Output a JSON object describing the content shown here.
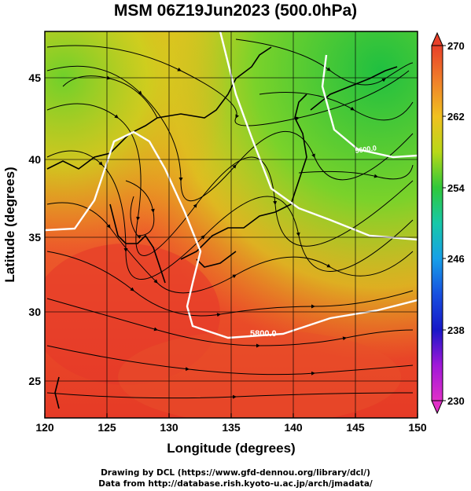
{
  "title": "MSM 06Z19Jun2023 (500.0hPa)",
  "x_axis": {
    "label": "Longitude (degrees)",
    "ticks": [
      "120",
      "125",
      "130",
      "135",
      "140",
      "145",
      "150"
    ]
  },
  "y_axis": {
    "label": "Latitude  (degrees)",
    "ticks": [
      "25",
      "30",
      "35",
      "40",
      "45"
    ]
  },
  "colorbar": {
    "labels": [
      "270",
      "262",
      "254",
      "246",
      "238",
      "230"
    ]
  },
  "contour_labels": [
    "5600.0",
    "5800.0"
  ],
  "footer": {
    "line1": "Drawing by DCL (https://www.gfd-dennou.org/library/dcl/)",
    "line2": "Data from http://database.rish.kyoto-u.ac.jp/arch/jmadata/"
  },
  "colors": {
    "warm": "#e8402a",
    "orange": "#f08a24",
    "yellow": "#e6d21a",
    "green": "#3cc82e",
    "contour": "#ffffff"
  },
  "chart_data": {
    "type": "map",
    "title": "MSM 06Z19Jun2023 (500.0hPa)",
    "xlabel": "Longitude (degrees)",
    "ylabel": "Latitude  (degrees)",
    "xlim": [
      120,
      150
    ],
    "ylim": [
      23,
      48
    ],
    "colorbar_range": [
      230,
      270
    ],
    "colorbar_ticks": [
      270,
      262,
      254,
      246,
      238,
      230
    ],
    "contour_labels": [
      "5600.0",
      "5800.0"
    ],
    "grid": true
  }
}
